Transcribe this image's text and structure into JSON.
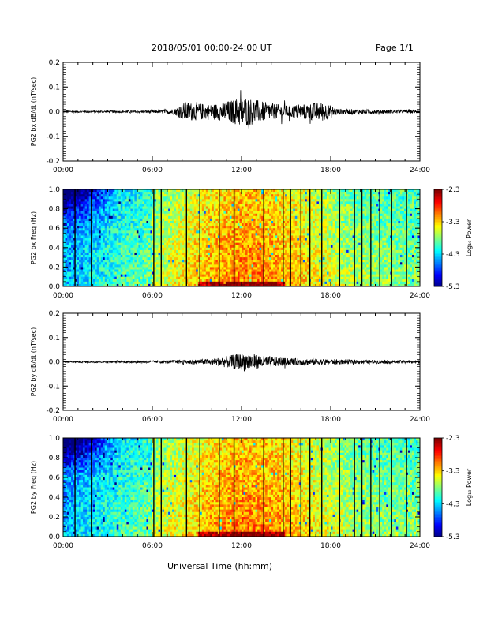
{
  "header": {
    "title": "2018/05/01  00:00-24:00 UT",
    "page": "Page 1/1"
  },
  "footer": {
    "xlabel": "Universal Time (hh:mm)"
  },
  "chart_data": [
    {
      "type": "line",
      "ylabel": "PG2 bx dB/dt (nT/sec)",
      "ylim": [
        -0.2,
        0.2
      ],
      "yticks": [
        "0.2",
        "0.1",
        "0.0",
        "-0.1",
        "-0.2"
      ],
      "xticks": [
        "00:00",
        "06:00",
        "12:00",
        "18:00",
        "24:00"
      ],
      "xlim_hours": [
        0,
        24
      ],
      "series": [
        {
          "amplitude_envelope": [
            {
              "x": 0,
              "y": 0.004
            },
            {
              "x": 3,
              "y": 0.004
            },
            {
              "x": 6,
              "y": 0.005
            },
            {
              "x": 7.5,
              "y": 0.012
            },
            {
              "x": 8.2,
              "y": 0.04
            },
            {
              "x": 10,
              "y": 0.03
            },
            {
              "x": 11.5,
              "y": 0.05
            },
            {
              "x": 12,
              "y": 0.065
            },
            {
              "x": 13.5,
              "y": 0.04
            },
            {
              "x": 15,
              "y": 0.025
            },
            {
              "x": 17.5,
              "y": 0.04
            },
            {
              "x": 18.5,
              "y": 0.012
            },
            {
              "x": 21,
              "y": 0.008
            },
            {
              "x": 24,
              "y": 0.006
            }
          ]
        }
      ]
    },
    {
      "type": "heatmap",
      "ylabel": "PG2 bx Freq (Hz)",
      "ylim": [
        0.0,
        1.0
      ],
      "yticks": [
        "1.0",
        "0.8",
        "0.6",
        "0.4",
        "0.2",
        "0.0"
      ],
      "xticks": [
        "00:00",
        "06:00",
        "12:00",
        "18:00",
        "24:00"
      ],
      "xlim_hours": [
        0,
        24
      ],
      "colorbar": {
        "label": "Log₁₀ Power",
        "ticks": [
          "-2.3",
          "-3.3",
          "-4.3",
          "-5.3"
        ],
        "range": [
          -5.3,
          -2.3
        ]
      },
      "gap_lines_hours": [
        0.8,
        1.9,
        6.1,
        6.6,
        8.3,
        9.2,
        10.5,
        11.5,
        13.5,
        14.8,
        15.3,
        16.0,
        16.6,
        17.4,
        18.6,
        19.6,
        20.1,
        20.7,
        21.3,
        22.1,
        23.1
      ]
    },
    {
      "type": "line",
      "ylabel": "PG2 by dB/dt (nT/sec)",
      "ylim": [
        -0.2,
        0.2
      ],
      "yticks": [
        "0.2",
        "0.1",
        "0.0",
        "-0.1",
        "-0.2"
      ],
      "xticks": [
        "00:00",
        "06:00",
        "12:00",
        "18:00",
        "24:00"
      ],
      "xlim_hours": [
        0,
        24
      ],
      "series": [
        {
          "amplitude_envelope": [
            {
              "x": 0,
              "y": 0.004
            },
            {
              "x": 3,
              "y": 0.004
            },
            {
              "x": 6,
              "y": 0.005
            },
            {
              "x": 8,
              "y": 0.008
            },
            {
              "x": 10,
              "y": 0.012
            },
            {
              "x": 11.5,
              "y": 0.03
            },
            {
              "x": 12.3,
              "y": 0.04
            },
            {
              "x": 13.5,
              "y": 0.025
            },
            {
              "x": 15,
              "y": 0.015
            },
            {
              "x": 17.5,
              "y": 0.012
            },
            {
              "x": 20,
              "y": 0.008
            },
            {
              "x": 24,
              "y": 0.006
            }
          ]
        }
      ]
    },
    {
      "type": "heatmap",
      "ylabel": "PG2 by Freq (Hz)",
      "ylim": [
        0.0,
        1.0
      ],
      "yticks": [
        "1.0",
        "0.8",
        "0.6",
        "0.4",
        "0.2",
        "0.0"
      ],
      "xticks": [
        "00:00",
        "06:00",
        "12:00",
        "18:00",
        "24:00"
      ],
      "xlim_hours": [
        0,
        24
      ],
      "colorbar": {
        "label": "Log₁₀ Power",
        "ticks": [
          "-2.3",
          "-3.3",
          "-4.3",
          "-5.3"
        ],
        "range": [
          -5.3,
          -2.3
        ]
      },
      "gap_lines_hours": [
        0.8,
        1.9,
        6.1,
        6.6,
        8.3,
        9.2,
        10.5,
        11.5,
        13.5,
        14.8,
        15.3,
        16.0,
        16.6,
        17.4,
        18.6,
        19.6,
        20.1,
        20.7,
        21.3,
        22.1,
        23.1
      ]
    }
  ]
}
